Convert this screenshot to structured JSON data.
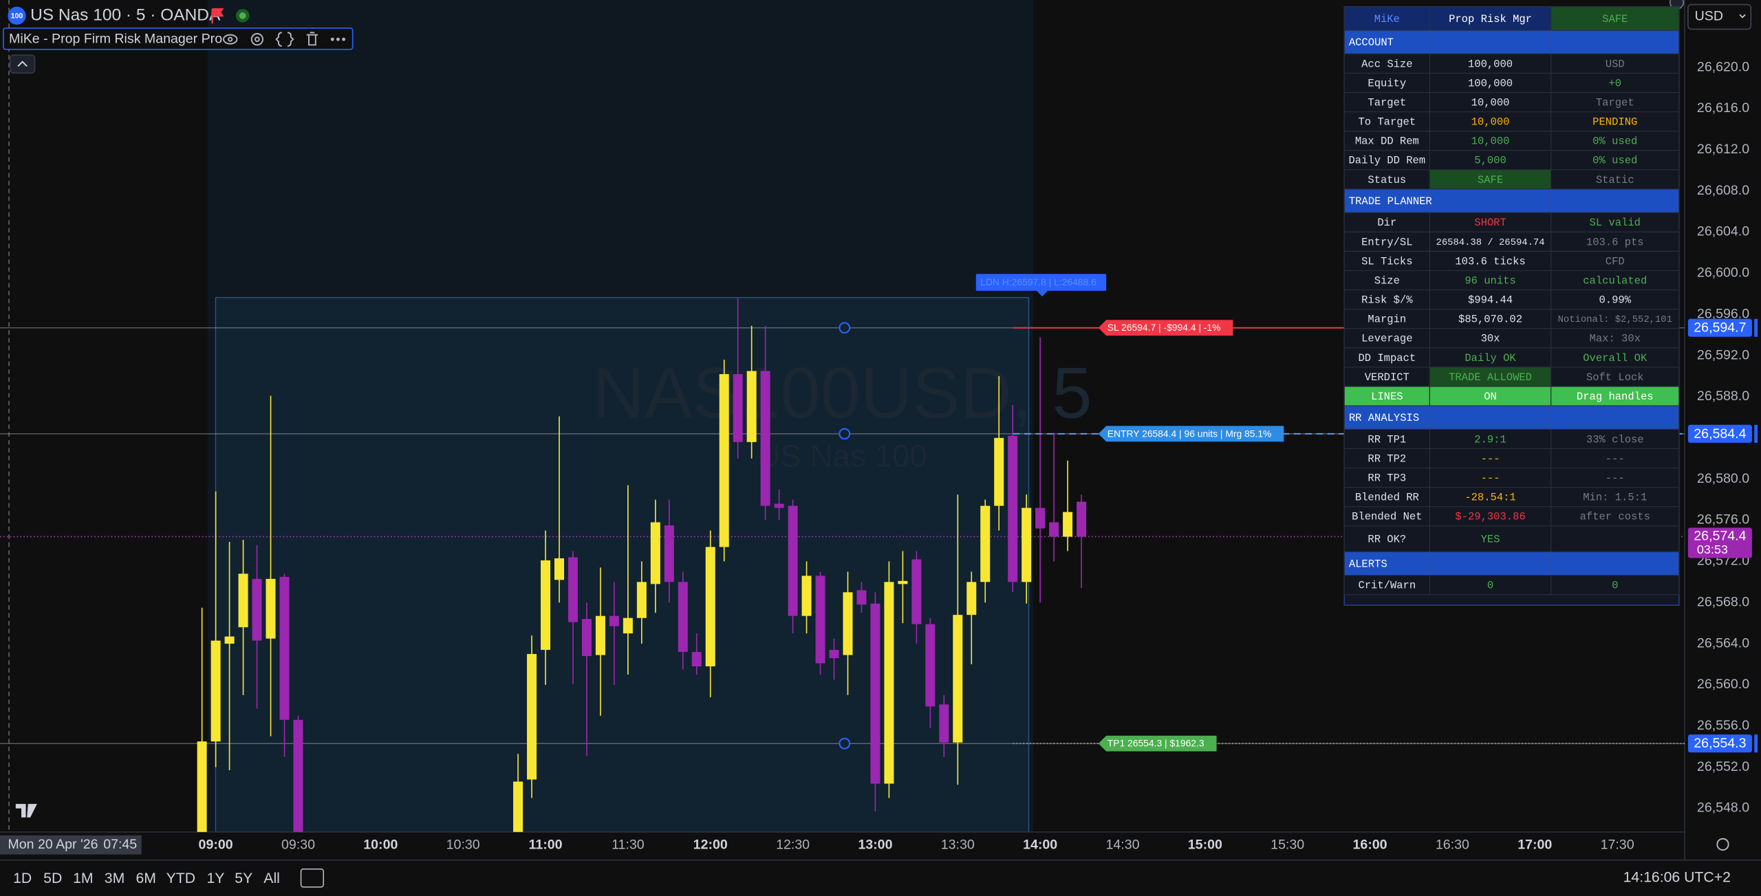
{
  "header": {
    "symbol": "US Nas 100 · 5 · OANDA",
    "icon": "100",
    "currency": "USD"
  },
  "indicator": {
    "title": "MiKe - Prop Firm Risk Manager Pro"
  },
  "watermark": {
    "symbol": "NAS100USD, 5",
    "description": "US Nas 100"
  },
  "chart_data": {
    "type": "candlestick",
    "x": [
      "08:55",
      "09:00",
      "09:05",
      "09:10",
      "09:15",
      "09:20",
      "09:25",
      "09:30",
      "10:50",
      "10:55",
      "11:00",
      "11:05",
      "11:10",
      "11:15",
      "11:20",
      "11:25",
      "11:30",
      "11:35",
      "11:40",
      "11:45",
      "11:50",
      "11:55",
      "12:00",
      "12:05",
      "12:10",
      "12:15",
      "12:20",
      "12:25",
      "12:30",
      "12:35",
      "12:40",
      "12:45",
      "12:50",
      "12:55",
      "13:00",
      "13:05",
      "13:10",
      "13:15",
      "13:20",
      "13:25",
      "13:30",
      "13:35",
      "13:40",
      "13:45",
      "13:50",
      "13:55",
      "14:00",
      "14:05",
      "14:10",
      "14:15"
    ],
    "open": [
      26544,
      26554.5,
      26564,
      26565.6,
      26570.3,
      26564.5,
      26570.5,
      26556.6,
      26543,
      26550.8,
      26563.4,
      26570.2,
      26572.4,
      26566.4,
      26562.9,
      26566.7,
      26565,
      26566.5,
      26569.8,
      26575.5,
      26570,
      26563.2,
      26561.8,
      26573.4,
      26590.2,
      26583.6,
      26590.5,
      26577.6,
      26577.4,
      26566.7,
      26570.6,
      26563.4,
      26562.9,
      26569.2,
      26567.9,
      26550.4,
      26569.8,
      26572.2,
      26565.9,
      26558.1,
      26554.4,
      26566.8,
      26570,
      26577.4,
      26584.2,
      26570,
      26577.2,
      26575.8,
      26574.4,
      26577.8
    ],
    "high": [
      26567.5,
      26578.8,
      26573.9,
      26574.1,
      26573.6,
      26588.1,
      26570.8,
      26557,
      26553.3,
      26564.8,
      26575,
      26586.1,
      26573,
      26568,
      26571.4,
      26570,
      26579.4,
      26572,
      26578,
      26578,
      26571,
      26565,
      26575,
      26591.6,
      26597.6,
      26594.9,
      26594.9,
      26579,
      26578,
      26572,
      26571,
      26564.5,
      26571,
      26570,
      26569,
      26572,
      26573,
      26573,
      26566.5,
      26559,
      26578.5,
      26571,
      26578,
      26590,
      26587.2,
      26578.5,
      26593.8,
      26584.5,
      26581.8,
      26578.5
    ],
    "low": [
      26540,
      26552,
      26551.7,
      26559,
      26557.7,
      26555,
      26553,
      26540,
      26540,
      26549,
      26560,
      26568,
      26560.1,
      26553.1,
      26557,
      26560,
      26561,
      26564,
      26567,
      26568,
      26561.5,
      26561,
      26558.8,
      26572,
      26582,
      26582,
      26576,
      26576,
      26565,
      26565,
      26561,
      26560.5,
      26559,
      26567,
      26547.7,
      26549,
      26566,
      26564,
      26555.8,
      26553,
      26550.3,
      26562,
      26568,
      26575,
      26569,
      26567.9,
      26568,
      26572,
      26573,
      26569.4
    ],
    "close": [
      26554.5,
      26564.3,
      26564.7,
      26570.8,
      26564.3,
      26570.3,
      26556.6,
      26543,
      26550.6,
      26563,
      26572.1,
      26572.3,
      26566.1,
      26562.8,
      26566.7,
      26565.7,
      26566.5,
      26570,
      26575.8,
      26570,
      26563.2,
      26561.8,
      26573.4,
      26590.2,
      26583.6,
      26590.5,
      26577.4,
      26577.2,
      26566.7,
      26570.6,
      26562.1,
      26562.6,
      26569,
      26567.8,
      26550.4,
      26570,
      26570.1,
      26565.9,
      26557.9,
      26554.4,
      26566.8,
      26570,
      26577.4,
      26584,
      26570,
      26577.2,
      26575.2,
      26574.4,
      26576.8,
      26574.4
    ],
    "up_color": "#f7e733",
    "down_color": "#9c27b0",
    "xlim": [
      461.5,
      1074.5
    ],
    "xticks": [
      {
        "value": 540,
        "label": "09:00"
      },
      {
        "value": 570,
        "label": "09:30"
      },
      {
        "value": 600,
        "label": "10:00"
      },
      {
        "value": 630,
        "label": "10:30"
      },
      {
        "value": 660,
        "label": "11:00"
      },
      {
        "value": 690,
        "label": "11:30"
      },
      {
        "value": 720,
        "label": "12:00"
      },
      {
        "value": 750,
        "label": "12:30"
      },
      {
        "value": 780,
        "label": "13:00"
      },
      {
        "value": 810,
        "label": "13:30"
      },
      {
        "value": 840,
        "label": "14:00"
      },
      {
        "value": 870,
        "label": "14:30"
      },
      {
        "value": 900,
        "label": "15:00"
      },
      {
        "value": 930,
        "label": "15:30"
      },
      {
        "value": 960,
        "label": "16:00"
      },
      {
        "value": 990,
        "label": "16:30"
      },
      {
        "value": 1020,
        "label": "17:00"
      },
      {
        "value": 1050,
        "label": "17:30"
      }
    ],
    "ylim": [
      26545.7,
      26626.56
    ],
    "yticks": [
      {
        "value": 26620,
        "label": "26,620.0"
      },
      {
        "value": 26616,
        "label": "26,616.0"
      },
      {
        "value": 26612,
        "label": "26,612.0"
      },
      {
        "value": 26608,
        "label": "26,608.0"
      },
      {
        "value": 26604,
        "label": "26,604.0"
      },
      {
        "value": 26600,
        "label": "26,600.0"
      },
      {
        "value": 26596,
        "label": "26,596.0"
      },
      {
        "value": 26592,
        "label": "26,592.0"
      },
      {
        "value": 26588,
        "label": "26,588.0"
      },
      {
        "value": 26580,
        "label": "26,580.0"
      },
      {
        "value": 26576,
        "label": "26,576.0"
      },
      {
        "value": 26572,
        "label": "26,572.0"
      },
      {
        "value": 26568,
        "label": "26,568.0"
      },
      {
        "value": 26564,
        "label": "26,564.0"
      },
      {
        "value": 26560,
        "label": "26,560.0"
      },
      {
        "value": 26556,
        "label": "26,556.0"
      },
      {
        "value": 26552,
        "label": "26,552.0"
      },
      {
        "value": 26548,
        "label": "26,548.0"
      }
    ],
    "levels": [
      {
        "value": 26594.7,
        "label": "26,594.7",
        "text": "SL 26594.7 | -$994.4 | -1%"
      },
      {
        "value": 26584.4,
        "label": "26,584.4",
        "text": "ENTRY 26584.4 | 96 units | Mrg 85.1%"
      },
      {
        "value": 26554.3,
        "label": "26,554.3",
        "text": "TP1 26554.3 | $1962.3"
      }
    ],
    "last_price": {
      "value": 26574.4,
      "label": "26,574.4",
      "countdown": "03:53"
    },
    "annotation": "LDN H:26597.8 | L:26488.6",
    "cursor": {
      "date": "Mon 20 Apr '26",
      "time": "07:45"
    }
  },
  "panel": {
    "header": [
      "MiKe",
      "Prop Risk Mgr",
      "SAFE"
    ],
    "sections": [
      {
        "title": "ACCOUNT",
        "rows": [
          [
            "Acc Size",
            "100,000",
            "USD"
          ],
          [
            "Equity",
            "100,000",
            "+0"
          ],
          [
            "Target",
            "10,000",
            "Target"
          ],
          [
            "To Target",
            "10,000",
            "PENDING"
          ],
          [
            "Max DD Rem",
            "10,000",
            "0% used"
          ],
          [
            "Daily DD Rem",
            "5,000",
            "0% used"
          ],
          [
            "Status",
            "SAFE",
            "Static"
          ]
        ]
      },
      {
        "title": "TRADE PLANNER",
        "rows": [
          [
            "Dir",
            "SHORT",
            "SL valid"
          ],
          [
            "Entry/SL",
            "26584.38 / 26594.74",
            "103.6 pts"
          ],
          [
            "SL Ticks",
            "103.6 ticks",
            "CFD"
          ],
          [
            "Size",
            "96 units",
            "calculated"
          ],
          [
            "Risk $/%",
            "$994.44",
            "0.99%"
          ],
          [
            "Margin",
            "$85,070.02",
            "Notional: $2,552,101"
          ],
          [
            "Leverage",
            "30x",
            "Max: 30x"
          ],
          [
            "DD Impact",
            "Daily OK",
            "Overall OK"
          ],
          [
            "VERDICT",
            "TRADE ALLOWED",
            "Soft Lock"
          ],
          [
            "LINES",
            "ON",
            "Drag handles"
          ]
        ]
      },
      {
        "title": "RR ANALYSIS",
        "rows": [
          [
            "RR TP1",
            "2.9:1",
            "33% close"
          ],
          [
            "RR TP2",
            "---",
            "---"
          ],
          [
            "RR TP3",
            "---",
            "---"
          ],
          [
            "Blended RR",
            "-28.54:1",
            "Min: 1.5:1"
          ],
          [
            "Blended Net",
            "$-29,303.86",
            "after costs"
          ],
          [
            "RR OK?",
            "YES"
          ]
        ]
      },
      {
        "title": "ALERTS",
        "rows": [
          [
            "Crit/Warn",
            "0",
            "0"
          ]
        ]
      }
    ]
  },
  "toolbar": {
    "ranges": [
      "1D",
      "5D",
      "1M",
      "3M",
      "6M",
      "YTD",
      "1Y",
      "5Y",
      "All"
    ],
    "clock": "14:16:06 UTC+2"
  }
}
